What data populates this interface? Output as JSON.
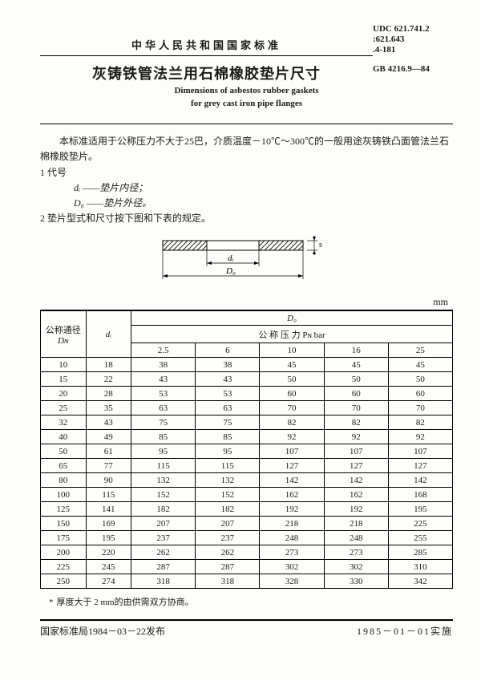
{
  "header": {
    "national_std": "中华人民共和国国家标准",
    "udc1": "UDC 621.741.2",
    "udc2": ":621.643",
    "udc3": ".4-181",
    "gb": "GB 4216.9—84",
    "title_cn": "灰铸铁管法兰用石棉橡胶垫片尺寸",
    "title_en1": "Dimensions of asbestos rubber gaskets",
    "title_en2": "for grey cast iron pipe flanges"
  },
  "body": {
    "scope": "本标准适用于公称压力不大于25巴，介质温度－10℃～300℃的一般用途灰铸铁凸面管法兰石棉橡胶垫片。",
    "sec1": "1 代号",
    "d_i": "dᵢ ——垫片内径；",
    "d_0": "D₀ ——垫片外径。",
    "sec2": "2 垫片型式和尺寸按下图和下表的规定。",
    "unit": "mm",
    "diagram": {
      "di_label": "dᵢ",
      "d0_label": "D₀",
      "s_label": "s"
    }
  },
  "table": {
    "col_dn_label1": "公称通径",
    "col_dn_label2": "Dɴ",
    "col_di": "dᵢ",
    "col_d0": "D₀",
    "pn_label": "公 称 压 力 Pɴ bar",
    "pn_values": [
      "2.5",
      "6",
      "10",
      "16",
      "25"
    ],
    "rows": [
      {
        "dn": "10",
        "di": "18",
        "v": [
          "38",
          "38",
          "45",
          "45",
          "45"
        ]
      },
      {
        "dn": "15",
        "di": "22",
        "v": [
          "43",
          "43",
          "50",
          "50",
          "50"
        ]
      },
      {
        "dn": "20",
        "di": "28",
        "v": [
          "53",
          "53",
          "60",
          "60",
          "60"
        ]
      },
      {
        "dn": "25",
        "di": "35",
        "v": [
          "63",
          "63",
          "70",
          "70",
          "70"
        ]
      },
      {
        "dn": "32",
        "di": "43",
        "v": [
          "75",
          "75",
          "82",
          "82",
          "82"
        ]
      },
      {
        "dn": "40",
        "di": "49",
        "v": [
          "85",
          "85",
          "92",
          "92",
          "92"
        ]
      },
      {
        "dn": "50",
        "di": "61",
        "v": [
          "95",
          "95",
          "107",
          "107",
          "107"
        ]
      },
      {
        "dn": "65",
        "di": "77",
        "v": [
          "115",
          "115",
          "127",
          "127",
          "127"
        ]
      },
      {
        "dn": "80",
        "di": "90",
        "v": [
          "132",
          "132",
          "142",
          "142",
          "142"
        ]
      },
      {
        "dn": "100",
        "di": "115",
        "v": [
          "152",
          "152",
          "162",
          "162",
          "168"
        ]
      },
      {
        "dn": "125",
        "di": "141",
        "v": [
          "182",
          "182",
          "192",
          "192",
          "195"
        ]
      },
      {
        "dn": "150",
        "di": "169",
        "v": [
          "207",
          "207",
          "218",
          "218",
          "225"
        ]
      },
      {
        "dn": "175",
        "di": "195",
        "v": [
          "237",
          "237",
          "248",
          "248",
          "255"
        ]
      },
      {
        "dn": "200",
        "di": "220",
        "v": [
          "262",
          "262",
          "273",
          "273",
          "285"
        ]
      },
      {
        "dn": "225",
        "di": "245",
        "v": [
          "287",
          "287",
          "302",
          "302",
          "310"
        ]
      },
      {
        "dn": "250",
        "di": "274",
        "v": [
          "318",
          "318",
          "328",
          "330",
          "342"
        ]
      }
    ]
  },
  "footnote": "厚度大于 2 mm的由供需双方协商。",
  "footer": {
    "issue": "国家标准局1984－03－22发布",
    "impl": "1985－01－01实施"
  }
}
